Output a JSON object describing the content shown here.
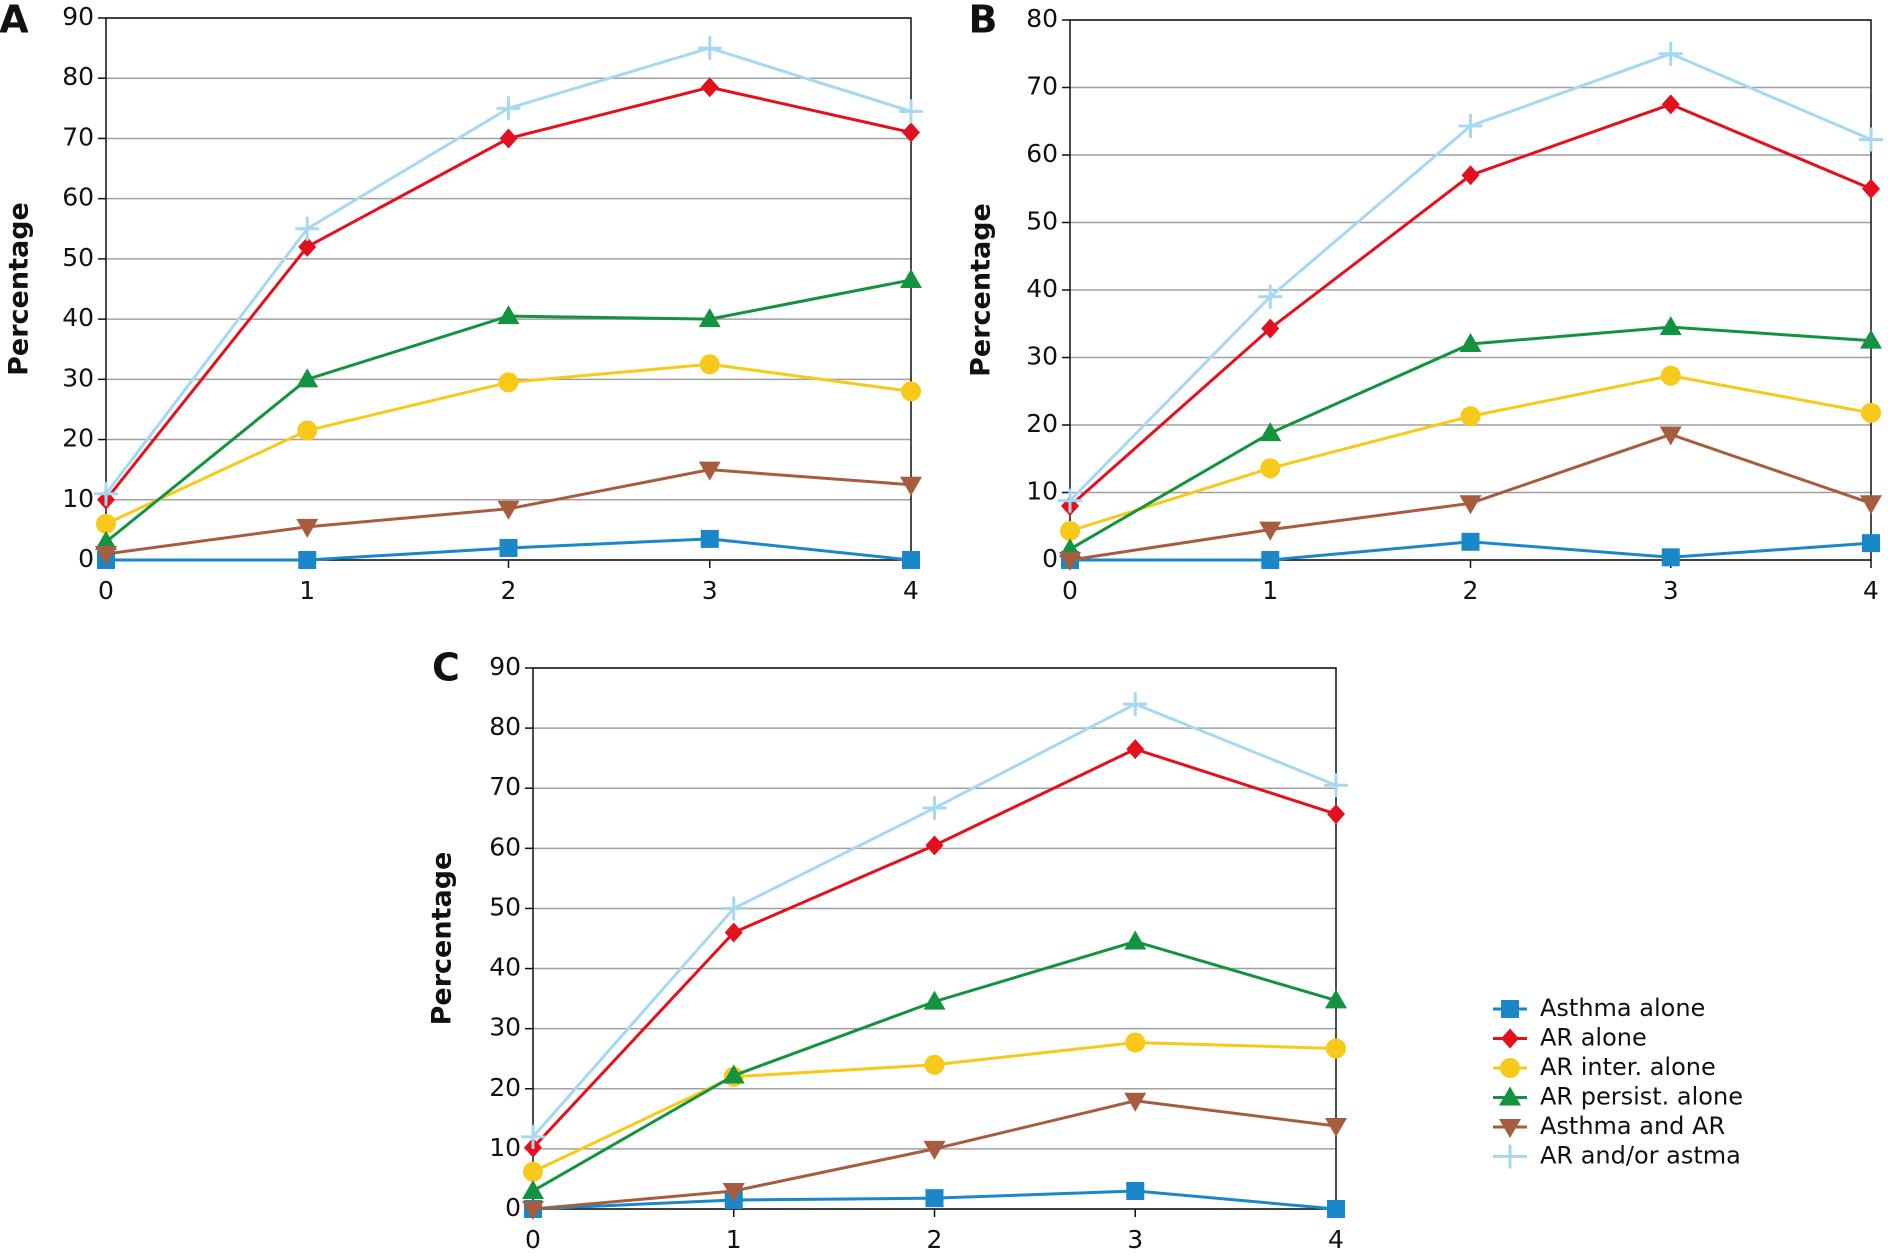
{
  "chart_data": [
    {
      "type": "line",
      "title": "A",
      "y_label": "Percentage",
      "x": [
        0,
        1,
        2,
        3,
        4
      ],
      "xlim": [
        0,
        4
      ],
      "xticks": [
        0,
        1,
        2,
        3,
        4
      ],
      "ylim": [
        0,
        90
      ],
      "yticks": [
        0,
        10,
        20,
        30,
        40,
        50,
        60,
        70,
        80,
        90
      ],
      "grid": true,
      "series": [
        {
          "color": "#1a87c9",
          "marker": "square",
          "values": [
            0,
            0,
            2,
            3.5,
            0
          ]
        },
        {
          "color": "#e3101e",
          "marker": "diamond",
          "values": [
            10,
            52,
            70,
            78.5,
            71
          ]
        },
        {
          "color": "#f7c91a",
          "marker": "circle",
          "values": [
            6,
            21.5,
            29.5,
            32.5,
            28
          ]
        },
        {
          "color": "#13933f",
          "marker": "triangle",
          "values": [
            3,
            30,
            40.5,
            40,
            46.5
          ]
        },
        {
          "color": "#a65c3e",
          "marker": "triangle-down",
          "values": [
            1,
            5.5,
            8.5,
            15,
            12.5
          ]
        },
        {
          "color": "#a6d8f2",
          "marker": "plus",
          "values": [
            11,
            55,
            75,
            85,
            74.5
          ]
        }
      ]
    },
    {
      "type": "line",
      "title": "B",
      "y_label": "Percentage",
      "x": [
        0,
        1,
        2,
        3,
        4
      ],
      "xlim": [
        0,
        4
      ],
      "xticks": [
        0,
        1,
        2,
        3,
        4
      ],
      "ylim": [
        0,
        80
      ],
      "yticks": [
        0,
        10,
        20,
        30,
        40,
        50,
        60,
        70,
        80
      ],
      "grid": true,
      "series": [
        {
          "color": "#1a87c9",
          "marker": "square",
          "values": [
            0,
            0,
            2.7,
            0.4,
            2.5
          ]
        },
        {
          "color": "#e3101e",
          "marker": "diamond",
          "values": [
            8,
            34.3,
            57,
            67.5,
            55
          ]
        },
        {
          "color": "#f7c91a",
          "marker": "circle",
          "values": [
            4.3,
            13.6,
            21.3,
            27.3,
            21.8
          ]
        },
        {
          "color": "#13933f",
          "marker": "triangle",
          "values": [
            1.6,
            18.8,
            32,
            34.5,
            32.5
          ]
        },
        {
          "color": "#a65c3e",
          "marker": "triangle-down",
          "values": [
            0,
            4.5,
            8.4,
            18.6,
            8.4
          ]
        },
        {
          "color": "#a6d8f2",
          "marker": "plus",
          "values": [
            8.8,
            39,
            64.3,
            75,
            62.3
          ]
        }
      ]
    },
    {
      "type": "line",
      "title": "C",
      "y_label": "Percentage",
      "x": [
        0,
        1,
        2,
        3,
        4
      ],
      "xlim": [
        0,
        4
      ],
      "xticks": [
        0,
        1,
        2,
        3,
        4
      ],
      "ylim": [
        0,
        90
      ],
      "yticks": [
        0,
        10,
        20,
        30,
        40,
        50,
        60,
        70,
        80,
        90
      ],
      "grid": true,
      "series": [
        {
          "name": "Asthma alone",
          "color": "#1a87c9",
          "marker": "square",
          "values": [
            0,
            1.5,
            1.8,
            3,
            0
          ]
        },
        {
          "name": "AR alone",
          "color": "#e3101e",
          "marker": "diamond",
          "values": [
            10.2,
            46,
            60.5,
            76.5,
            65.7
          ]
        },
        {
          "name": "AR inter. alone",
          "color": "#f7c91a",
          "marker": "circle",
          "values": [
            6.2,
            22,
            24,
            27.7,
            26.7
          ]
        },
        {
          "name": "AR persist. alone",
          "color": "#13933f",
          "marker": "triangle",
          "values": [
            3,
            22.2,
            34.5,
            44.5,
            34.7
          ]
        },
        {
          "name": "Asthma and AR",
          "color": "#a65c3e",
          "marker": "triangle-down",
          "values": [
            0,
            3,
            10,
            18,
            13.8
          ]
        },
        {
          "name": "AR and/or astma",
          "color": "#a6d8f2",
          "marker": "plus",
          "values": [
            12,
            50,
            66.7,
            84,
            70.5
          ]
        }
      ]
    }
  ]
}
